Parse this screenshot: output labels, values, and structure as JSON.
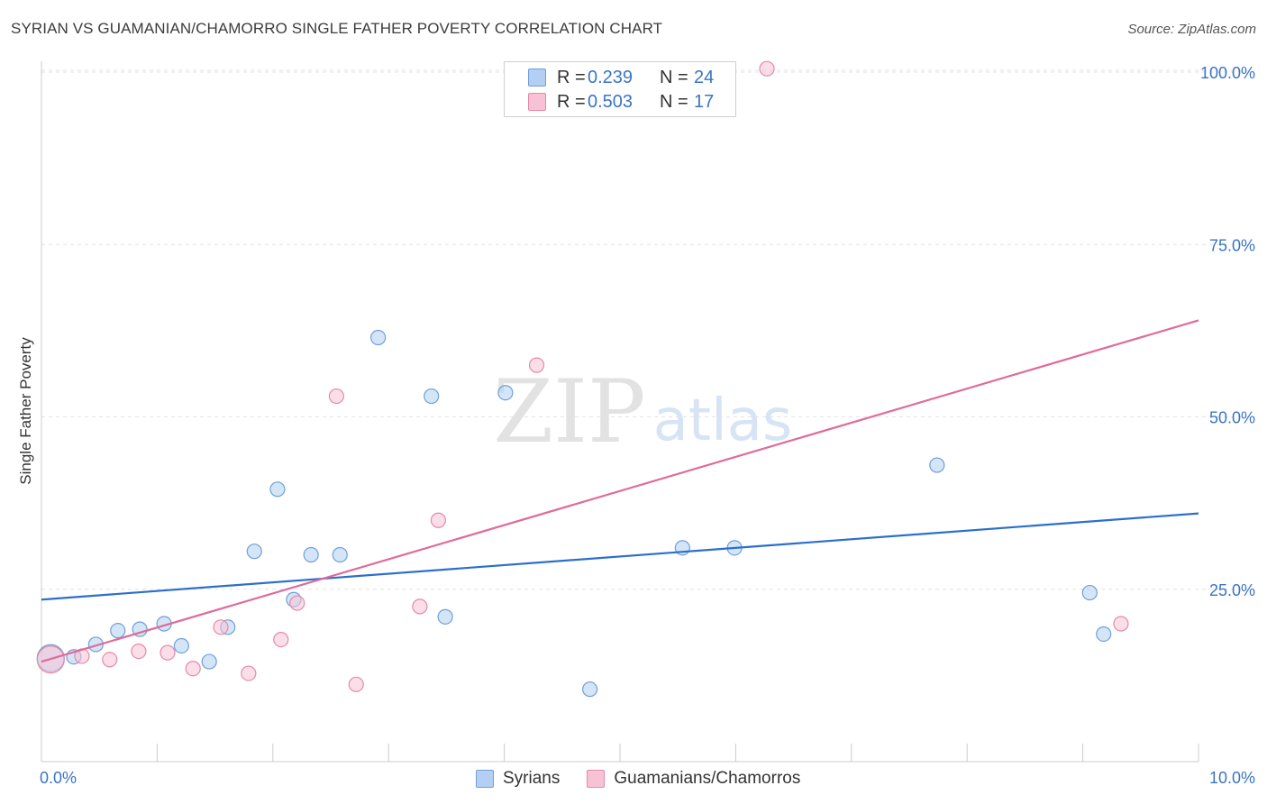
{
  "header": {
    "title": "SYRIAN VS GUAMANIAN/CHAMORRO SINGLE FATHER POVERTY CORRELATION CHART",
    "source": "Source: ZipAtlas.com"
  },
  "watermark": {
    "zip": "ZIP",
    "atlas": "atlas"
  },
  "colors": {
    "blue_fill": "#b3cff3",
    "blue_edge": "#6f9fd8",
    "blue_line": "#2b6fcc",
    "pink_fill": "#f7c2d3",
    "pink_edge": "#e58aa8",
    "pink_line": "#e06b9a",
    "tick_text": "#3a74c5",
    "grid": "#e3e3e3"
  },
  "legend_top": {
    "rows": [
      {
        "r_label": "R =",
        "r_value": "0.239",
        "n_label": "N =",
        "n_value": "24"
      },
      {
        "r_label": "R =",
        "r_value": "0.503",
        "n_label": "N =",
        "n_value": "17"
      }
    ]
  },
  "legend_bottom": {
    "syrians": "Syrians",
    "guamanians": "Guamanians/Chamorros"
  },
  "chart_data": {
    "type": "scatter",
    "title": "SYRIAN VS GUAMANIAN/CHAMORRO SINGLE FATHER POVERTY CORRELATION CHART",
    "xlabel": "",
    "ylabel": "Single Father Poverty",
    "xlim": [
      0,
      10
    ],
    "ylim": [
      0,
      100
    ],
    "x_ticks": [
      0,
      1,
      2,
      3,
      4,
      5,
      6,
      7,
      8,
      9,
      10
    ],
    "x_tick_labels": {
      "min": "0.0%",
      "max": "10.0%"
    },
    "y_ticks": [
      25,
      50,
      75,
      100
    ],
    "y_tick_labels": [
      "25.0%",
      "50.0%",
      "75.0%",
      "100.0%"
    ],
    "grid": true,
    "legend_position": "top-center",
    "series": [
      {
        "name": "Syrians",
        "r": 0.239,
        "n": 24,
        "trend": {
          "x": [
            0,
            10
          ],
          "y": [
            23.5,
            36.0
          ]
        },
        "points": [
          {
            "x": 0.08,
            "y": 15.0,
            "big": true
          },
          {
            "x": 0.28,
            "y": 15.2
          },
          {
            "x": 0.47,
            "y": 17.0
          },
          {
            "x": 0.66,
            "y": 19.0
          },
          {
            "x": 0.85,
            "y": 19.2
          },
          {
            "x": 1.06,
            "y": 20.0
          },
          {
            "x": 1.21,
            "y": 16.8
          },
          {
            "x": 1.45,
            "y": 14.5
          },
          {
            "x": 1.61,
            "y": 19.5
          },
          {
            "x": 1.84,
            "y": 30.5
          },
          {
            "x": 2.04,
            "y": 39.5
          },
          {
            "x": 2.18,
            "y": 23.5
          },
          {
            "x": 2.33,
            "y": 30.0
          },
          {
            "x": 2.58,
            "y": 30.0
          },
          {
            "x": 2.91,
            "y": 61.5
          },
          {
            "x": 3.37,
            "y": 53.0
          },
          {
            "x": 3.49,
            "y": 21.0
          },
          {
            "x": 4.01,
            "y": 53.5
          },
          {
            "x": 4.74,
            "y": 10.5
          },
          {
            "x": 5.54,
            "y": 31.0
          },
          {
            "x": 5.99,
            "y": 31.0
          },
          {
            "x": 7.74,
            "y": 43.0
          },
          {
            "x": 9.06,
            "y": 24.5
          },
          {
            "x": 9.18,
            "y": 18.5
          }
        ]
      },
      {
        "name": "Guamanians/Chamorros",
        "r": 0.503,
        "n": 17,
        "trend": {
          "x": [
            0,
            10
          ],
          "y": [
            14.5,
            64.0
          ]
        },
        "points": [
          {
            "x": 0.08,
            "y": 14.8,
            "big": true
          },
          {
            "x": 0.35,
            "y": 15.3
          },
          {
            "x": 0.59,
            "y": 14.8
          },
          {
            "x": 0.84,
            "y": 16.0
          },
          {
            "x": 1.09,
            "y": 15.8
          },
          {
            "x": 1.31,
            "y": 13.5
          },
          {
            "x": 1.55,
            "y": 19.5
          },
          {
            "x": 1.79,
            "y": 12.8
          },
          {
            "x": 2.07,
            "y": 17.7
          },
          {
            "x": 2.21,
            "y": 23.0
          },
          {
            "x": 2.55,
            "y": 53.0
          },
          {
            "x": 2.72,
            "y": 11.2
          },
          {
            "x": 3.27,
            "y": 22.5
          },
          {
            "x": 3.43,
            "y": 35.0
          },
          {
            "x": 4.28,
            "y": 57.5
          },
          {
            "x": 6.27,
            "y": 100.5
          },
          {
            "x": 9.33,
            "y": 20.0
          }
        ]
      }
    ]
  }
}
